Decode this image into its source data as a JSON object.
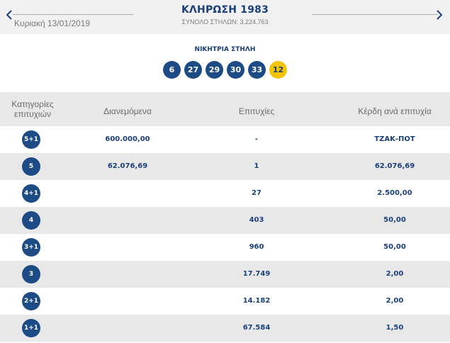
{
  "header": {
    "date": "Κυριακή 13/01/2019",
    "draw_title": "ΚΛΗΡΩΣΗ 1983",
    "total_columns": "ΣΥΝΟΛΟ ΣΤΗΛΩΝ: 3.224.763",
    "prev_icon": "chevron-left-icon",
    "next_icon": "chevron-right-icon"
  },
  "winning": {
    "label": "ΝΙΚΗΤΡΙΑ ΣΤΗΛΗ",
    "numbers": [
      "6",
      "27",
      "29",
      "30",
      "33"
    ],
    "joker": "12"
  },
  "table": {
    "headers": {
      "category_line1": "Κατηγορίες",
      "category_line2": "επιτυχιών",
      "distributed": "Διανεμόμενα",
      "winners": "Επιτυχίες",
      "prize": "Κέρδη ανά επιτυχία"
    },
    "rows": [
      {
        "category": "5+1",
        "distributed": "600.000,00",
        "winners": "-",
        "prize": "ΤΖΑΚ-ΠΟΤ"
      },
      {
        "category": "5",
        "distributed": "62.076,69",
        "winners": "1",
        "prize": "62.076,69"
      },
      {
        "category": "4+1",
        "distributed": "",
        "winners": "27",
        "prize": "2.500,00"
      },
      {
        "category": "4",
        "distributed": "",
        "winners": "403",
        "prize": "50,00"
      },
      {
        "category": "3+1",
        "distributed": "",
        "winners": "960",
        "prize": "50,00"
      },
      {
        "category": "3",
        "distributed": "",
        "winners": "17.749",
        "prize": "2,00"
      },
      {
        "category": "2+1",
        "distributed": "",
        "winners": "14.182",
        "prize": "2,00"
      },
      {
        "category": "1+1",
        "distributed": "",
        "winners": "67.584",
        "prize": "1,50"
      }
    ]
  },
  "colors": {
    "brand_blue": "#1d4b86",
    "joker_yellow": "#f5c400",
    "stripe_gray": "#e8e8e8"
  }
}
